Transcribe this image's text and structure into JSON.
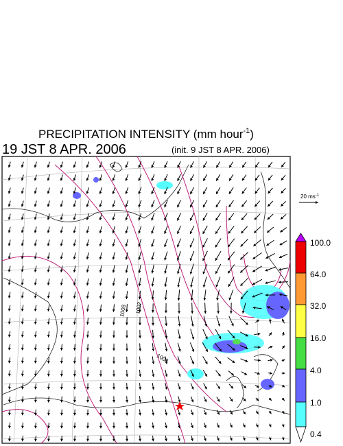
{
  "title": {
    "text": "PRECIPITATION INTENSITY (mm hour",
    "sup": "-1",
    "end": ")"
  },
  "valid_time": "19 JST 8 APR. 2006",
  "init_time": "(init. 9 JST 8 APR. 2006)",
  "wind_scale": {
    "text": "20 ms",
    "sup": "-1"
  },
  "colorbar": {
    "labels": [
      "100.0",
      "64.0",
      "32.0",
      "16.0",
      "4.0",
      "1.0",
      "0.4"
    ]
  },
  "contour_labels": [
    "1008",
    "1002",
    "1008"
  ]
}
